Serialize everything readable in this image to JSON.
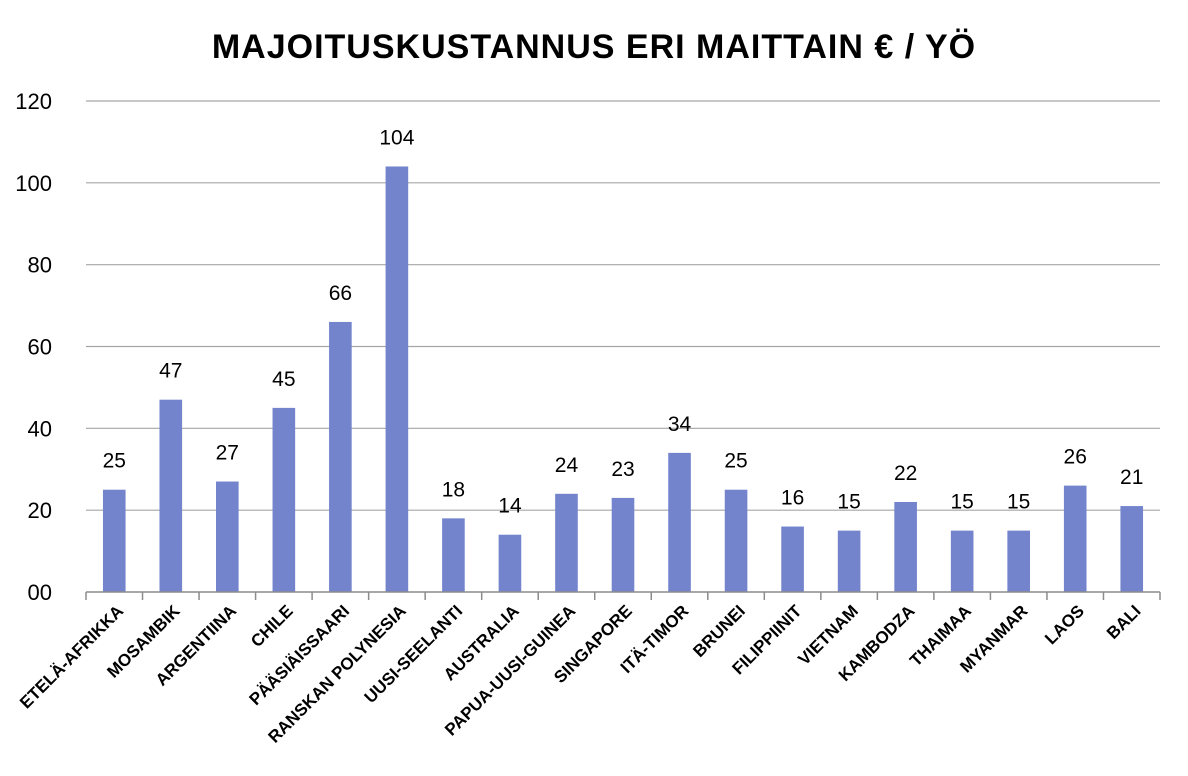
{
  "chart_data": {
    "type": "bar",
    "title": "MAJOITUSKUSTANNUS ERI MAITTAIN € / YÖ",
    "categories": [
      "ETELÄ-AFRIKKA",
      "MOSAMBIK",
      "ARGENTIINA",
      "CHILE",
      "PÄÄSIÄISSAARI",
      "RANSKAN POLYNESIA",
      "UUSI-SEELANTI",
      "AUSTRALIA",
      "PAPUA-UUSI-GUINEA",
      "SINGAPORE",
      "ITÄ-TIMOR",
      "BRUNEI",
      "FILIPPIINIT",
      "VIETNAM",
      "KAMBODZA",
      "THAIMAA",
      "MYANMAR",
      "LAOS",
      "BALI"
    ],
    "values": [
      25,
      47,
      27,
      45,
      66,
      104,
      18,
      14,
      24,
      23,
      34,
      25,
      16,
      15,
      22,
      15,
      15,
      26,
      21
    ],
    "data_labels": [
      "25",
      "47",
      "27",
      "45",
      "66",
      "104",
      "18",
      "14",
      "24",
      "23",
      "34",
      "25",
      "16",
      "15",
      "22",
      "15",
      "15",
      "26",
      "21"
    ],
    "ylim": [
      0,
      120
    ],
    "yticks": [
      0,
      20,
      40,
      60,
      80,
      100,
      120
    ],
    "ytick_labels": [
      "00",
      "20",
      "40",
      "60",
      "80",
      "100",
      "120"
    ],
    "grid": true,
    "bar_color": "#7384cd",
    "xlabel": "",
    "ylabel": ""
  }
}
